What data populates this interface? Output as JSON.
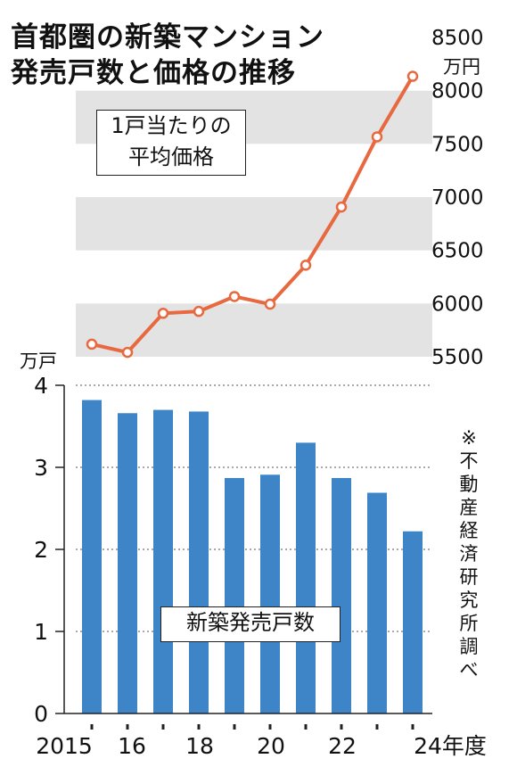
{
  "title_lines": [
    "首都圏の新築マンション",
    "発売戸数と価格の推移"
  ],
  "source_note": "※不動産経済研究所調べ",
  "colors": {
    "line": "#e8683f",
    "bars": "#3d85c6",
    "bands": "#e3e3e3",
    "text": "#111111"
  },
  "chart_data": [
    {
      "type": "line",
      "label_box": [
        "1戸当たりの",
        "平均価格"
      ],
      "unit": "万円",
      "x": [
        2015,
        2016,
        2017,
        2018,
        2019,
        2020,
        2021,
        2022,
        2023,
        2024
      ],
      "values": [
        5618,
        5541,
        5908,
        5926,
        6066,
        5994,
        6360,
        6907,
        7566,
        8135
      ],
      "ylim": [
        5500,
        8500
      ],
      "yticks": [
        5500,
        6000,
        6500,
        7000,
        7500,
        8000,
        8500
      ],
      "bands": [
        [
          5500,
          6000
        ],
        [
          6500,
          7000
        ],
        [
          7500,
          8000
        ]
      ]
    },
    {
      "type": "bar",
      "label_box": "新築発売戸数",
      "unit": "万戸",
      "x": [
        2015,
        2016,
        2017,
        2018,
        2019,
        2020,
        2021,
        2022,
        2023,
        2024
      ],
      "values": [
        3.82,
        3.66,
        3.7,
        3.68,
        2.87,
        2.91,
        3.3,
        2.87,
        2.69,
        2.22
      ],
      "ylim": [
        0,
        4
      ],
      "yticks": [
        "0",
        "1",
        "2",
        "3",
        "4"
      ],
      "xtick_labels": [
        "2015",
        "16",
        "18",
        "20",
        "22",
        "24年度"
      ]
    }
  ]
}
